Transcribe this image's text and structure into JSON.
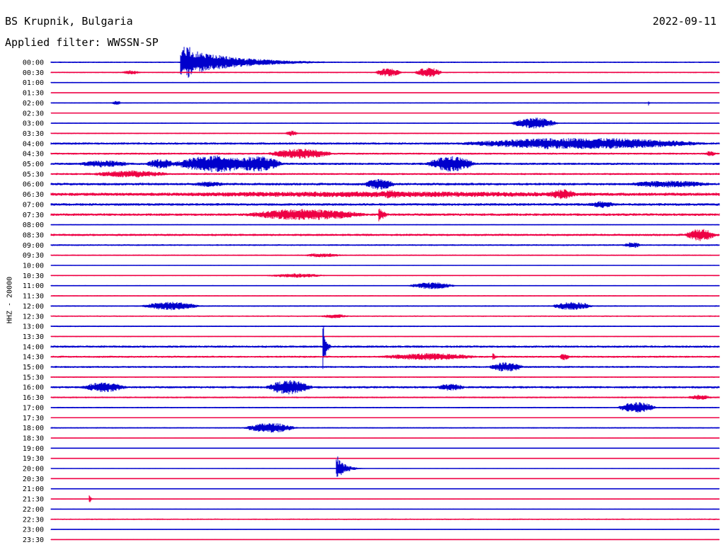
{
  "header": {
    "station": "BS Krupnik, Bulgaria",
    "date": "2022-09-11",
    "filter": "Applied filter: WWSSN-SP"
  },
  "chart_data": {
    "type": "helicorder",
    "title": "BS Krupnik, Bulgaria",
    "date": "2022-09-11",
    "filter": "WWSSN-SP",
    "channel_label": "HHZ - 20000",
    "colors": {
      "even": "#0000cc",
      "odd": "#ee0044"
    },
    "trace_labels": [
      "00:00",
      "00:30",
      "01:00",
      "01:30",
      "02:00",
      "02:30",
      "03:00",
      "03:30",
      "04:00",
      "04:30",
      "05:00",
      "05:30",
      "06:00",
      "06:30",
      "07:00",
      "07:30",
      "08:00",
      "08:30",
      "09:00",
      "09:30",
      "10:00",
      "10:30",
      "11:00",
      "11:30",
      "12:00",
      "12:30",
      "13:00",
      "13:30",
      "14:00",
      "14:30",
      "15:00",
      "15:30",
      "16:00",
      "16:30",
      "17:00",
      "17:30",
      "18:00",
      "18:30",
      "19:00",
      "19:30",
      "20:00",
      "20:30",
      "21:00",
      "21:30",
      "22:00",
      "22:30",
      "23:00",
      "23:30"
    ],
    "trace_duration_min": 30,
    "noise": [
      1,
      1,
      0.8,
      0.5,
      0.8,
      0.6,
      0.8,
      1,
      1.6,
      1.4,
      1.6,
      1.4,
      1.8,
      2.2,
      1.8,
      1.8,
      0.8,
      1.6,
      1.2,
      1,
      0.6,
      0.8,
      0.8,
      0.8,
      1,
      1,
      1,
      0.8,
      1.6,
      1.4,
      1.4,
      1,
      1.6,
      1.2,
      1,
      0.6,
      1,
      0.6,
      0.6,
      0.6,
      0.6,
      0.6,
      0.6,
      0.6,
      0.6,
      1,
      0.6,
      0.6
    ],
    "events": [
      {
        "trace": "00:00",
        "start_min": 5.8,
        "dur_min": 9,
        "amp": 22,
        "spike": true
      },
      {
        "trace": "00:30",
        "start_min": 3.1,
        "dur_min": 1,
        "amp": 3
      },
      {
        "trace": "00:30",
        "start_min": 14.5,
        "dur_min": 1.3,
        "amp": 6
      },
      {
        "trace": "00:30",
        "start_min": 16.3,
        "dur_min": 1.3,
        "amp": 7
      },
      {
        "trace": "02:00",
        "start_min": 2.7,
        "dur_min": 0.5,
        "amp": 3
      },
      {
        "trace": "02:00",
        "start_min": 26.8,
        "dur_min": 0.2,
        "amp": 6,
        "spike": true
      },
      {
        "trace": "03:00",
        "start_min": 20.6,
        "dur_min": 2.2,
        "amp": 8
      },
      {
        "trace": "03:30",
        "start_min": 10.5,
        "dur_min": 0.6,
        "amp": 4
      },
      {
        "trace": "04:00",
        "start_min": 17.9,
        "dur_min": 12,
        "amp": 8
      },
      {
        "trace": "04:00",
        "start_min": 21.8,
        "dur_min": 0.8,
        "amp": 9
      },
      {
        "trace": "04:30",
        "start_min": 9.6,
        "dur_min": 3.2,
        "amp": 7
      },
      {
        "trace": "04:30",
        "start_min": 29.3,
        "dur_min": 0.6,
        "amp": 4
      },
      {
        "trace": "05:00",
        "start_min": 1,
        "dur_min": 2.8,
        "amp": 5
      },
      {
        "trace": "05:00",
        "start_min": 4.2,
        "dur_min": 1.5,
        "amp": 7
      },
      {
        "trace": "05:00",
        "start_min": 5.4,
        "dur_min": 4,
        "amp": 12
      },
      {
        "trace": "05:00",
        "start_min": 8,
        "dur_min": 2.5,
        "amp": 11
      },
      {
        "trace": "05:00",
        "start_min": 16.8,
        "dur_min": 2.3,
        "amp": 11
      },
      {
        "trace": "05:30",
        "start_min": 1.6,
        "dur_min": 4,
        "amp": 5
      },
      {
        "trace": "06:00",
        "start_min": 6.2,
        "dur_min": 1.8,
        "amp": 4
      },
      {
        "trace": "06:00",
        "start_min": 14,
        "dur_min": 1.5,
        "amp": 8
      },
      {
        "trace": "06:00",
        "start_min": 25.5,
        "dur_min": 4.5,
        "amp": 5
      },
      {
        "trace": "06:30",
        "start_min": 0,
        "dur_min": 30,
        "amp": 4
      },
      {
        "trace": "06:30",
        "start_min": 14.5,
        "dur_min": 1.5,
        "amp": 6
      },
      {
        "trace": "06:30",
        "start_min": 22.2,
        "dur_min": 1.5,
        "amp": 7
      },
      {
        "trace": "07:00",
        "start_min": 24,
        "dur_min": 1.5,
        "amp": 5
      },
      {
        "trace": "07:30",
        "start_min": 8.4,
        "dur_min": 6,
        "amp": 8
      },
      {
        "trace": "07:30",
        "start_min": 14.7,
        "dur_min": 1,
        "amp": 13,
        "spike": true
      },
      {
        "trace": "08:30",
        "start_min": 28.4,
        "dur_min": 1.5,
        "amp": 9
      },
      {
        "trace": "09:00",
        "start_min": 25.6,
        "dur_min": 1,
        "amp": 4
      },
      {
        "trace": "09:30",
        "start_min": 11.2,
        "dur_min": 2,
        "amp": 3
      },
      {
        "trace": "10:30",
        "start_min": 9.5,
        "dur_min": 3,
        "amp": 3
      },
      {
        "trace": "11:00",
        "start_min": 16,
        "dur_min": 2.2,
        "amp": 5
      },
      {
        "trace": "12:00",
        "start_min": 4,
        "dur_min": 2.8,
        "amp": 6
      },
      {
        "trace": "12:00",
        "start_min": 22.4,
        "dur_min": 2,
        "amp": 6
      },
      {
        "trace": "12:30",
        "start_min": 12,
        "dur_min": 1.5,
        "amp": 3
      },
      {
        "trace": "14:00",
        "start_min": 12.2,
        "dur_min": 0.5,
        "amp": 40,
        "spike": true
      },
      {
        "trace": "14:30",
        "start_min": 14.5,
        "dur_min": 5,
        "amp": 5
      },
      {
        "trace": "14:30",
        "start_min": 19.8,
        "dur_min": 0.4,
        "amp": 10,
        "spike": true
      },
      {
        "trace": "14:30",
        "start_min": 22.8,
        "dur_min": 0.5,
        "amp": 5
      },
      {
        "trace": "15:00",
        "start_min": 19.6,
        "dur_min": 1.7,
        "amp": 7
      },
      {
        "trace": "16:00",
        "start_min": 1.3,
        "dur_min": 2.2,
        "amp": 7
      },
      {
        "trace": "16:00",
        "start_min": 9.6,
        "dur_min": 2.2,
        "amp": 10
      },
      {
        "trace": "16:00",
        "start_min": 17.2,
        "dur_min": 1.5,
        "amp": 5
      },
      {
        "trace": "16:30",
        "start_min": 28.5,
        "dur_min": 1.2,
        "amp": 4
      },
      {
        "trace": "17:00",
        "start_min": 25.4,
        "dur_min": 1.8,
        "amp": 8
      },
      {
        "trace": "18:00",
        "start_min": 8.6,
        "dur_min": 2.5,
        "amp": 7
      },
      {
        "trace": "20:00",
        "start_min": 12.8,
        "dur_min": 1.5,
        "amp": 18,
        "spike": true
      },
      {
        "trace": "21:30",
        "start_min": 1.7,
        "dur_min": 0.3,
        "amp": 10,
        "spike": true
      }
    ]
  }
}
